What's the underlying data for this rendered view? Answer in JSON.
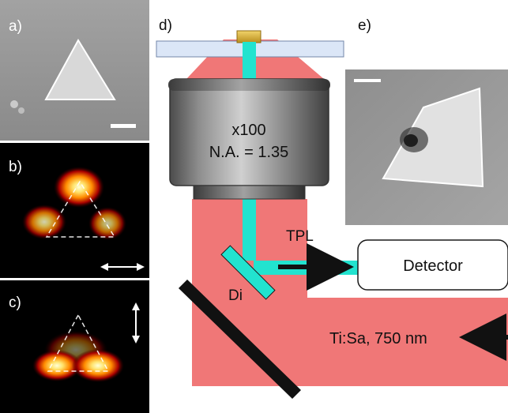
{
  "panels": {
    "a": {
      "label": "a)"
    },
    "b": {
      "label": "b)"
    },
    "c": {
      "label": "c)"
    },
    "d": {
      "label": "d)"
    },
    "e": {
      "label": "e)"
    }
  },
  "objective": {
    "magnification": "x100",
    "numerical_aperture": "N.A. = 1.35"
  },
  "setup": {
    "tpl_label": "TPL",
    "detector_label": "Detector",
    "dichroic_label": "Di",
    "laser_label": "Ti:Sa, 750 nm"
  },
  "colors": {
    "excitation_beam": "#f07777",
    "tpl_beam": "#22e3cf",
    "objective_body": "#8b8b8b",
    "sem_background": "#8f8f8f",
    "map_background": "#000000",
    "sample_particle": "#e1c64f",
    "substrate": "#dbe6f7"
  },
  "icons": {
    "b_polarization": "horizontal-double-arrow-icon",
    "c_polarization": "vertical-double-arrow-icon",
    "beam_direction": "right-arrow-icon",
    "laser_direction": "left-arrow-icon"
  }
}
